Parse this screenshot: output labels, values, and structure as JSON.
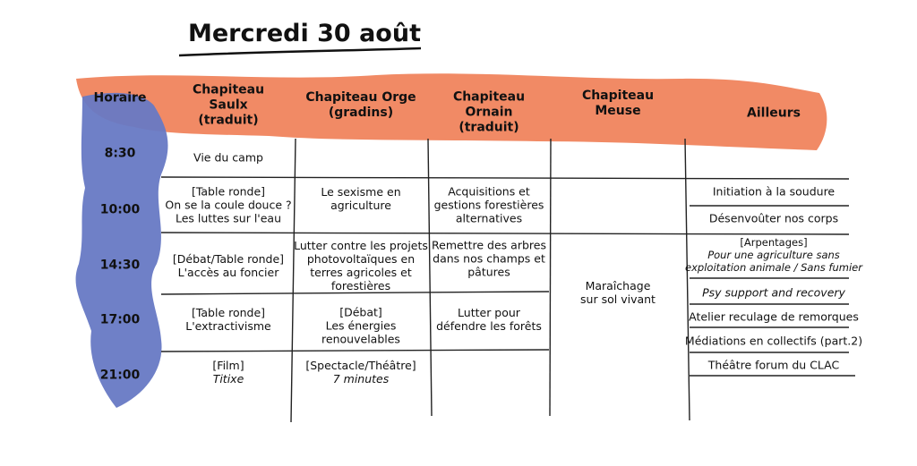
{
  "title": "Mercredi 30 août",
  "horaire_header": "Horaire",
  "times": [
    "8:30",
    "10:00",
    "14:30",
    "17:00",
    "21:00"
  ],
  "columns": [
    {
      "header": [
        "Chapiteau",
        "Saulx",
        "(traduit)"
      ],
      "events": [
        {
          "lines": [
            "Vie du camp"
          ]
        },
        {
          "lines": [
            "[Table ronde]",
            "On se la coule douce ?",
            "Les luttes sur l'eau"
          ]
        },
        {
          "lines": [
            "[Débat/Table ronde]",
            "L'accès au foncier"
          ]
        },
        {
          "lines": [
            "[Table ronde]",
            "L'extractivisme"
          ]
        },
        {
          "lines": [
            "[Film]"
          ],
          "italic_lines": [
            "Titixe"
          ]
        }
      ]
    },
    {
      "header": [
        "Chapiteau Orge",
        "(gradins)"
      ],
      "events": [
        {
          "lines": [
            "Le sexisme en",
            "agriculture"
          ]
        },
        {
          "lines": [
            "Lutter contre les projets",
            "photovoltaïques en",
            "terres agricoles et",
            "forestières"
          ]
        },
        {
          "lines": [
            "[Débat]",
            "Les énergies",
            "renouvelables"
          ]
        },
        {
          "lines": [
            "[Spectacle/Théâtre]"
          ],
          "italic_lines": [
            "7 minutes"
          ]
        }
      ]
    },
    {
      "header": [
        "Chapiteau",
        "Ornain",
        "(traduit)"
      ],
      "events": [
        {
          "lines": [
            "Acquisitions et",
            "gestions forestières",
            "alternatives"
          ]
        },
        {
          "lines": [
            "Remettre des arbres",
            "dans nos champs et",
            "pâtures"
          ]
        },
        {
          "lines": [
            "Lutter pour",
            "défendre les forêts"
          ]
        }
      ]
    },
    {
      "header": [
        "Chapiteau",
        "Meuse"
      ],
      "events": [
        {
          "lines": [
            "Maraîchage",
            "sur sol vivant"
          ]
        }
      ]
    },
    {
      "header": [
        "Ailleurs"
      ],
      "events": [
        {
          "lines": [
            "Initiation à la soudure"
          ]
        },
        {
          "lines": [
            "Désenvoûter nos corps"
          ]
        },
        {
          "lines": [
            "[Arpentages]"
          ],
          "italic_lines": [
            "Pour une agriculture sans",
            "exploitation animale / Sans fumier"
          ]
        },
        {
          "italic_lines": [
            "Psy support and recovery"
          ]
        },
        {
          "lines": [
            "Atelier reculage de remorques"
          ]
        },
        {
          "lines": [
            "Médiations en collectifs (part.2)"
          ]
        },
        {
          "lines": [
            "Théâtre forum du CLAC"
          ]
        }
      ]
    }
  ]
}
